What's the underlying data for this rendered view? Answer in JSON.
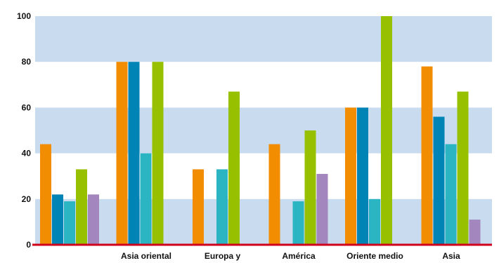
{
  "chart_data": {
    "type": "bar",
    "categories": [
      "",
      "Asia oriental",
      "Europa y",
      "América",
      "Oriente medio",
      "Asia"
    ],
    "series": [
      {
        "values": [
          44,
          80,
          33,
          44,
          60,
          78
        ],
        "color": "#F28C00"
      },
      {
        "values": [
          22,
          80,
          0,
          0,
          60,
          56
        ],
        "color": "#0083B5"
      },
      {
        "values": [
          19,
          40,
          33,
          19,
          20,
          44
        ],
        "color": "#2BB5C2"
      },
      {
        "values": [
          33,
          80,
          67,
          50,
          100,
          67
        ],
        "color": "#97C100"
      },
      {
        "values": [
          22,
          0,
          0,
          31,
          0,
          11
        ],
        "color": "#A386BE"
      }
    ],
    "yticks": [
      0,
      20,
      40,
      60,
      80,
      100
    ],
    "ylim": [
      0,
      100
    ],
    "grid": "alternating horizontal bands",
    "band_color": "#C9DBEF",
    "axis_color": "#D0021B"
  }
}
